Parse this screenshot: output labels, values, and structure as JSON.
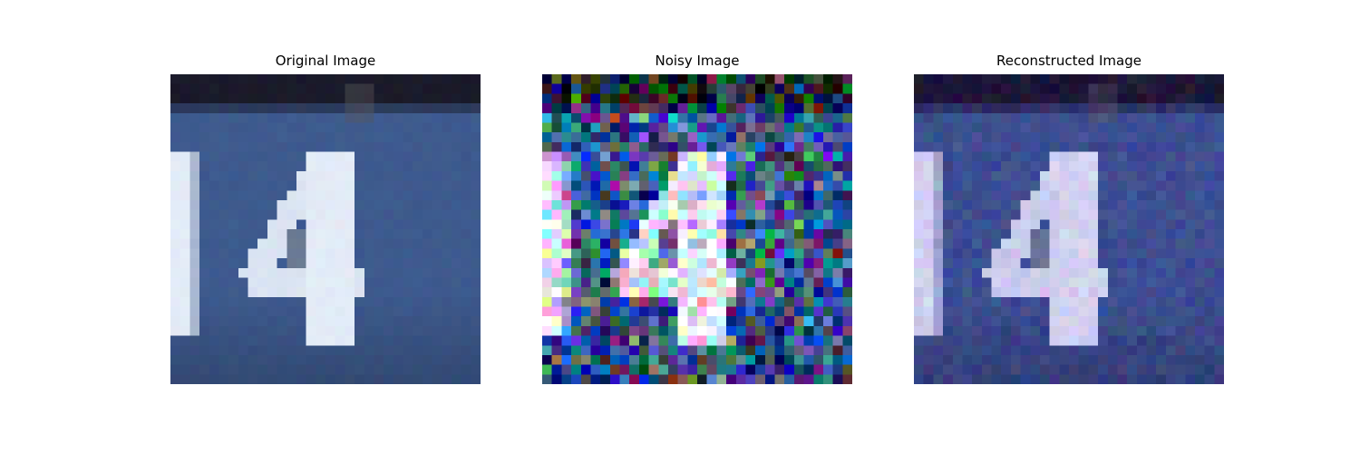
{
  "figure": {
    "panels": [
      {
        "id": "original",
        "title": "Original Image"
      },
      {
        "id": "noisy",
        "title": "Noisy Image"
      },
      {
        "id": "reconstructed",
        "title": "Reconstructed Image"
      }
    ]
  },
  "image": {
    "grid": "32x32 pixels",
    "subject": "house number digit 4 on blue background",
    "palette": {
      "bar_dark": "#1a1a2a",
      "background_blue": "#3e5a8e",
      "digit_light": "#e3ebf7",
      "hole_gray": "#6a7a92"
    }
  }
}
